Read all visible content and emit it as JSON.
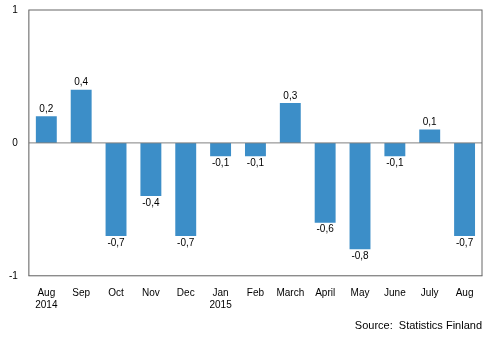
{
  "chart_data": {
    "type": "bar",
    "categories": [
      "Aug\n2014",
      "Sep",
      "Oct",
      "Nov",
      "Dec",
      "Jan\n2015",
      "Feb",
      "March",
      "April",
      "May",
      "June",
      "July",
      "Aug"
    ],
    "values": [
      0.2,
      0.4,
      -0.7,
      -0.4,
      -0.7,
      -0.1,
      -0.1,
      0.3,
      -0.6,
      -0.8,
      -0.1,
      0.1,
      -0.7
    ],
    "value_labels": [
      "0,2",
      "0,4",
      "-0,7",
      "-0,4",
      "-0,7",
      "-0,1",
      "-0,1",
      "0,3",
      "-0,6",
      "-0,8",
      "-0,1",
      "0,1",
      "-0,7"
    ],
    "data_labels": true,
    "color": "#3c8ec8",
    "ylim": [
      -1,
      1
    ],
    "yticks": [
      -1,
      0,
      1
    ],
    "grid": false,
    "annotations": [
      "Source:  Statistics Finland"
    ]
  }
}
